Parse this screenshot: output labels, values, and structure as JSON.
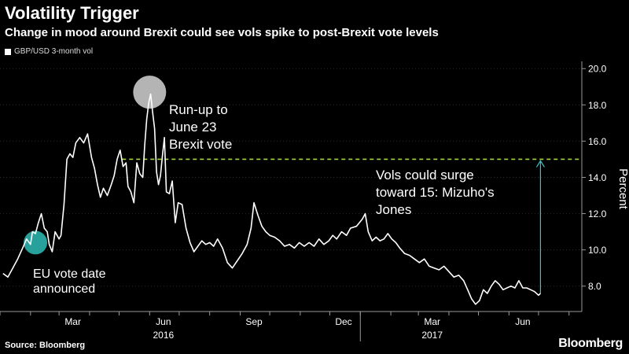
{
  "title": "Volatility Trigger",
  "subtitle": "Change in mood around Brexit could see vols spike to post-Brexit vote levels",
  "footer": {
    "source": "Source: Bloomberg",
    "brand": "Bloomberg"
  },
  "colors": {
    "background": "#000000",
    "series": "#ffffff",
    "target_line": "#a6d63c",
    "arrow": "#39c3c9",
    "marker_gray": "#c8c8c8",
    "marker_teal": "#2aa9a4"
  },
  "chart_data": {
    "type": "line",
    "ylabel": "Percent",
    "ylim": [
      6.6,
      20.4
    ],
    "yticks": [
      8.0,
      10.0,
      12.0,
      14.0,
      16.0,
      18.0,
      20.0
    ],
    "ytick_labels": [
      "8.0",
      "10.0",
      "12.0",
      "14.0",
      "16.0",
      "18.0",
      "20.0"
    ],
    "xlim": [
      "2016-01-01",
      "2017-08-14"
    ],
    "month_ticks": [
      "2016-01-01",
      "2016-02-01",
      "2016-03-01",
      "2016-04-01",
      "2016-05-01",
      "2016-06-01",
      "2016-07-01",
      "2016-08-01",
      "2016-09-01",
      "2016-10-01",
      "2016-11-01",
      "2016-12-01",
      "2017-01-01",
      "2017-02-01",
      "2017-03-01",
      "2017-04-01",
      "2017-05-01",
      "2017-06-01",
      "2017-07-01",
      "2017-08-01"
    ],
    "x_labels": [
      {
        "label": "Mar",
        "date": "2016-03-15"
      },
      {
        "label": "Jun",
        "date": "2016-06-15"
      },
      {
        "label": "Sep",
        "date": "2016-09-15"
      },
      {
        "label": "Dec",
        "date": "2016-12-15"
      },
      {
        "label": "Mar",
        "date": "2017-03-15"
      },
      {
        "label": "Jun",
        "date": "2017-06-15"
      }
    ],
    "years": [
      {
        "label": "2016",
        "date": "2016-06-15"
      },
      {
        "label": "2017",
        "date": "2017-03-15"
      }
    ],
    "year_divider": "2017-01-01",
    "legend": [
      "GBP/USD 3-month vol"
    ],
    "series": [
      {
        "name": "GBP/USD 3-month vol",
        "points": [
          [
            "2016-01-04",
            8.7
          ],
          [
            "2016-01-09",
            8.5
          ],
          [
            "2016-01-14",
            9.0
          ],
          [
            "2016-01-19",
            9.5
          ],
          [
            "2016-01-24",
            10.1
          ],
          [
            "2016-01-28",
            10.6
          ],
          [
            "2016-02-01",
            10.3
          ],
          [
            "2016-02-03",
            11.0
          ],
          [
            "2016-02-06",
            10.9
          ],
          [
            "2016-02-09",
            11.5
          ],
          [
            "2016-02-12",
            12.0
          ],
          [
            "2016-02-15",
            11.2
          ],
          [
            "2016-02-18",
            11.0
          ],
          [
            "2016-02-20",
            10.3
          ],
          [
            "2016-02-23",
            9.9
          ],
          [
            "2016-02-26",
            11.0
          ],
          [
            "2016-03-01",
            10.6
          ],
          [
            "2016-03-03",
            10.8
          ],
          [
            "2016-03-06",
            12.5
          ],
          [
            "2016-03-09",
            15.0
          ],
          [
            "2016-03-12",
            15.3
          ],
          [
            "2016-03-15",
            15.1
          ],
          [
            "2016-03-18",
            15.9
          ],
          [
            "2016-03-22",
            16.2
          ],
          [
            "2016-03-26",
            15.9
          ],
          [
            "2016-03-30",
            16.4
          ],
          [
            "2016-04-03",
            15.1
          ],
          [
            "2016-04-06",
            14.5
          ],
          [
            "2016-04-09",
            13.6
          ],
          [
            "2016-04-12",
            12.9
          ],
          [
            "2016-04-15",
            13.4
          ],
          [
            "2016-04-19",
            13.0
          ],
          [
            "2016-04-23",
            13.6
          ],
          [
            "2016-04-26",
            14.1
          ],
          [
            "2016-04-29",
            15.0
          ],
          [
            "2016-05-02",
            15.5
          ],
          [
            "2016-05-05",
            14.6
          ],
          [
            "2016-05-08",
            14.8
          ],
          [
            "2016-05-10",
            13.5
          ],
          [
            "2016-05-13",
            13.2
          ],
          [
            "2016-05-16",
            12.6
          ],
          [
            "2016-05-19",
            14.8
          ],
          [
            "2016-05-22",
            14.2
          ],
          [
            "2016-05-25",
            14.0
          ],
          [
            "2016-05-27",
            15.8
          ],
          [
            "2016-05-29",
            17.2
          ],
          [
            "2016-05-31",
            18.1
          ],
          [
            "2016-06-02",
            18.6
          ],
          [
            "2016-06-04",
            17.6
          ],
          [
            "2016-06-06",
            16.7
          ],
          [
            "2016-06-08",
            14.3
          ],
          [
            "2016-06-10",
            13.6
          ],
          [
            "2016-06-12",
            14.1
          ],
          [
            "2016-06-14",
            15.2
          ],
          [
            "2016-06-16",
            16.2
          ],
          [
            "2016-06-18",
            13.2
          ],
          [
            "2016-06-21",
            13.1
          ],
          [
            "2016-06-24",
            13.8
          ],
          [
            "2016-06-27",
            11.5
          ],
          [
            "2016-06-30",
            12.6
          ],
          [
            "2016-07-04",
            12.5
          ],
          [
            "2016-07-08",
            11.2
          ],
          [
            "2016-07-12",
            10.4
          ],
          [
            "2016-07-16",
            9.9
          ],
          [
            "2016-07-20",
            10.2
          ],
          [
            "2016-07-24",
            10.5
          ],
          [
            "2016-07-28",
            10.3
          ],
          [
            "2016-08-01",
            10.4
          ],
          [
            "2016-08-05",
            10.2
          ],
          [
            "2016-08-09",
            10.6
          ],
          [
            "2016-08-14",
            10.1
          ],
          [
            "2016-08-19",
            9.3
          ],
          [
            "2016-08-24",
            9.0
          ],
          [
            "2016-08-29",
            9.4
          ],
          [
            "2016-09-03",
            9.8
          ],
          [
            "2016-09-08",
            10.3
          ],
          [
            "2016-09-12",
            11.2
          ],
          [
            "2016-09-15",
            12.6
          ],
          [
            "2016-09-19",
            11.9
          ],
          [
            "2016-09-23",
            11.3
          ],
          [
            "2016-09-27",
            11.0
          ],
          [
            "2016-10-01",
            10.8
          ],
          [
            "2016-10-06",
            10.7
          ],
          [
            "2016-10-11",
            10.5
          ],
          [
            "2016-10-16",
            10.2
          ],
          [
            "2016-10-21",
            10.3
          ],
          [
            "2016-10-26",
            10.1
          ],
          [
            "2016-10-31",
            10.4
          ],
          [
            "2016-11-05",
            10.2
          ],
          [
            "2016-11-10",
            10.4
          ],
          [
            "2016-11-15",
            10.2
          ],
          [
            "2016-11-20",
            10.6
          ],
          [
            "2016-11-25",
            10.3
          ],
          [
            "2016-11-30",
            10.5
          ],
          [
            "2016-12-04",
            10.8
          ],
          [
            "2016-12-08",
            10.6
          ],
          [
            "2016-12-13",
            11.0
          ],
          [
            "2016-12-18",
            10.8
          ],
          [
            "2016-12-22",
            11.2
          ],
          [
            "2016-12-28",
            11.3
          ],
          [
            "2017-01-03",
            11.7
          ],
          [
            "2017-01-06",
            12.0
          ],
          [
            "2017-01-09",
            11.0
          ],
          [
            "2017-01-13",
            10.5
          ],
          [
            "2017-01-17",
            10.7
          ],
          [
            "2017-01-21",
            10.5
          ],
          [
            "2017-01-25",
            10.6
          ],
          [
            "2017-01-29",
            10.9
          ],
          [
            "2017-02-02",
            10.6
          ],
          [
            "2017-02-06",
            10.4
          ],
          [
            "2017-02-10",
            10.1
          ],
          [
            "2017-02-15",
            9.8
          ],
          [
            "2017-02-20",
            9.7
          ],
          [
            "2017-02-25",
            9.5
          ],
          [
            "2017-03-02",
            9.3
          ],
          [
            "2017-03-07",
            9.5
          ],
          [
            "2017-03-12",
            9.1
          ],
          [
            "2017-03-17",
            9.0
          ],
          [
            "2017-03-22",
            8.9
          ],
          [
            "2017-03-27",
            9.1
          ],
          [
            "2017-04-01",
            8.8
          ],
          [
            "2017-04-06",
            8.5
          ],
          [
            "2017-04-11",
            8.6
          ],
          [
            "2017-04-16",
            8.3
          ],
          [
            "2017-04-20",
            7.8
          ],
          [
            "2017-04-24",
            7.3
          ],
          [
            "2017-04-28",
            7.0
          ],
          [
            "2017-05-02",
            7.2
          ],
          [
            "2017-05-06",
            7.8
          ],
          [
            "2017-05-10",
            7.6
          ],
          [
            "2017-05-14",
            8.0
          ],
          [
            "2017-05-18",
            8.3
          ],
          [
            "2017-05-22",
            8.1
          ],
          [
            "2017-05-26",
            7.8
          ],
          [
            "2017-05-30",
            7.9
          ],
          [
            "2017-06-03",
            8.0
          ],
          [
            "2017-06-07",
            7.9
          ],
          [
            "2017-06-11",
            8.3
          ],
          [
            "2017-06-15",
            7.9
          ],
          [
            "2017-06-19",
            7.9
          ],
          [
            "2017-06-23",
            7.8
          ],
          [
            "2017-06-27",
            7.7
          ],
          [
            "2017-07-01",
            7.5
          ],
          [
            "2017-07-03",
            7.6
          ]
        ]
      }
    ],
    "reference_line": {
      "y": 15.0,
      "style": "dashed",
      "x_start": "2016-05-04",
      "x_end": "2017-08-12"
    },
    "arrow": {
      "x": "2017-07-03",
      "y_from": 7.6,
      "y_to": 15.0
    },
    "markers": [
      {
        "x": "2016-06-01",
        "y": 18.7,
        "color": "gray"
      },
      {
        "x": "2016-02-06",
        "y": 10.4,
        "color": "teal"
      }
    ],
    "annotations": [
      {
        "lines": [
          "Run-up to",
          "June 23",
          "Brexit vote"
        ]
      },
      {
        "lines": [
          "EU vote date",
          "announced"
        ]
      },
      {
        "lines": [
          "Vols could surge",
          "toward 15: Mizuho's",
          "Jones"
        ]
      }
    ]
  }
}
